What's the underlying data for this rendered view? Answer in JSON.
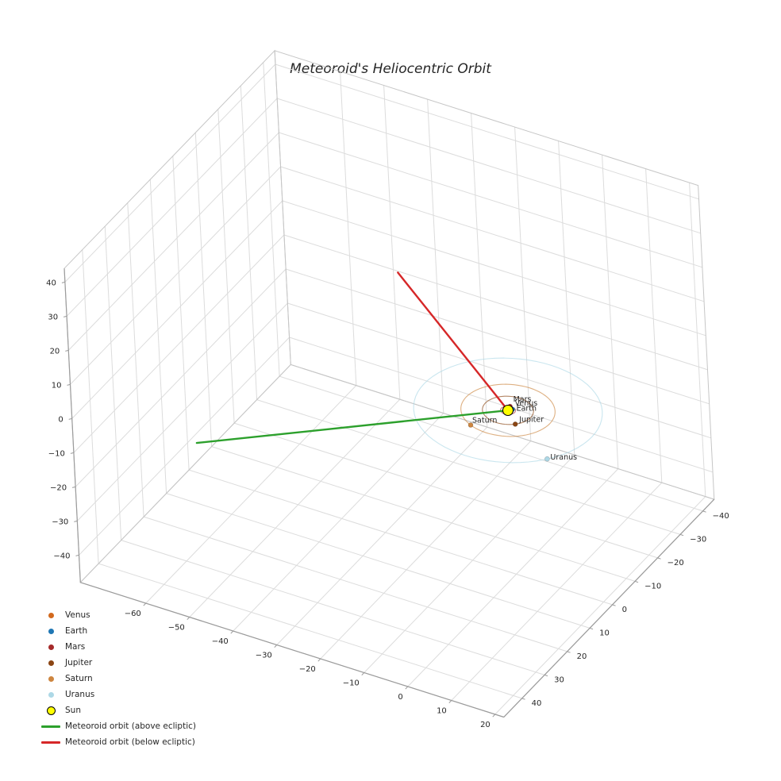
{
  "figure": {
    "title": "Meteoroid's Heliocentric Orbit"
  },
  "chart_data": {
    "type": "line3d",
    "title": "Meteoroid's Heliocentric Orbit",
    "view": {
      "projection": "3d",
      "elev": 30,
      "azim": -60,
      "grid": true,
      "legend_position": "lower-left"
    },
    "axes": {
      "x": {
        "range": [
          -75,
          22
        ],
        "ticks": [
          -60,
          -50,
          -40,
          -30,
          -20,
          -10,
          0,
          10,
          20
        ]
      },
      "y": {
        "range": [
          -45,
          48
        ],
        "ticks": [
          -40,
          -30,
          -20,
          -10,
          0,
          10,
          20,
          30,
          40
        ]
      },
      "z": {
        "range": [
          -48,
          44
        ],
        "ticks": [
          -40,
          -30,
          -20,
          -10,
          0,
          10,
          20,
          30,
          40
        ]
      }
    },
    "sun": {
      "label": "Sun",
      "color": "#ffff00",
      "edge_color": "#000000",
      "position": [
        0,
        0,
        0
      ]
    },
    "planets": [
      {
        "name": "Venus",
        "color": "#d2691e",
        "orbit_radius": 0.72,
        "position": [
          0.1,
          -0.71,
          0
        ],
        "label_offset": [
          6,
          -4
        ]
      },
      {
        "name": "Earth",
        "color": "#1f77b4",
        "orbit_radius": 1.0,
        "position": [
          0.6,
          -0.8,
          0
        ],
        "label_offset": [
          5,
          2
        ]
      },
      {
        "name": "Mars",
        "color": "#a52a2a",
        "orbit_radius": 1.52,
        "position": [
          -0.3,
          -1.49,
          0
        ],
        "label_offset": [
          4,
          -6
        ]
      },
      {
        "name": "Jupiter",
        "color": "#8b4513",
        "orbit_radius": 5.2,
        "position": [
          3.61,
          3.74,
          0
        ],
        "label_offset": [
          5,
          -3
        ]
      },
      {
        "name": "Saturn",
        "color": "#cd853f",
        "orbit_radius": 9.58,
        "position": [
          -4.05,
          8.68,
          0
        ],
        "label_offset": [
          2,
          -3
        ]
      },
      {
        "name": "Uranus",
        "color": "#add8e6",
        "orbit_radius": 19.2,
        "position": [
          15.1,
          11.8,
          0
        ],
        "label_offset": [
          4,
          1
        ]
      }
    ],
    "meteoroid_orbit": {
      "above": {
        "label": "Meteoroid orbit (above ecliptic)",
        "color": "#2ca02c",
        "points": [
          [
            0,
            0,
            0
          ],
          [
            -49,
            43,
            0
          ]
        ]
      },
      "below": {
        "label": "Meteoroid orbit (below ecliptic)",
        "color": "#d62728",
        "points": [
          [
            0,
            0,
            0
          ],
          [
            -24,
            0,
            30.6
          ]
        ]
      }
    },
    "legend": [
      {
        "label": "Venus",
        "type": "marker",
        "color": "#d2691e"
      },
      {
        "label": "Earth",
        "type": "marker",
        "color": "#1f77b4"
      },
      {
        "label": "Mars",
        "type": "marker",
        "color": "#a52a2a"
      },
      {
        "label": "Jupiter",
        "type": "marker",
        "color": "#8b4513"
      },
      {
        "label": "Saturn",
        "type": "marker",
        "color": "#cd853f"
      },
      {
        "label": "Uranus",
        "type": "marker",
        "color": "#add8e6"
      },
      {
        "label": "Sun",
        "type": "marker",
        "color": "#ffff00",
        "edge": "#000000"
      },
      {
        "label": "Meteoroid orbit (above ecliptic)",
        "type": "line",
        "color": "#2ca02c"
      },
      {
        "label": "Meteoroid orbit (below ecliptic)",
        "type": "line",
        "color": "#d62728"
      }
    ]
  }
}
